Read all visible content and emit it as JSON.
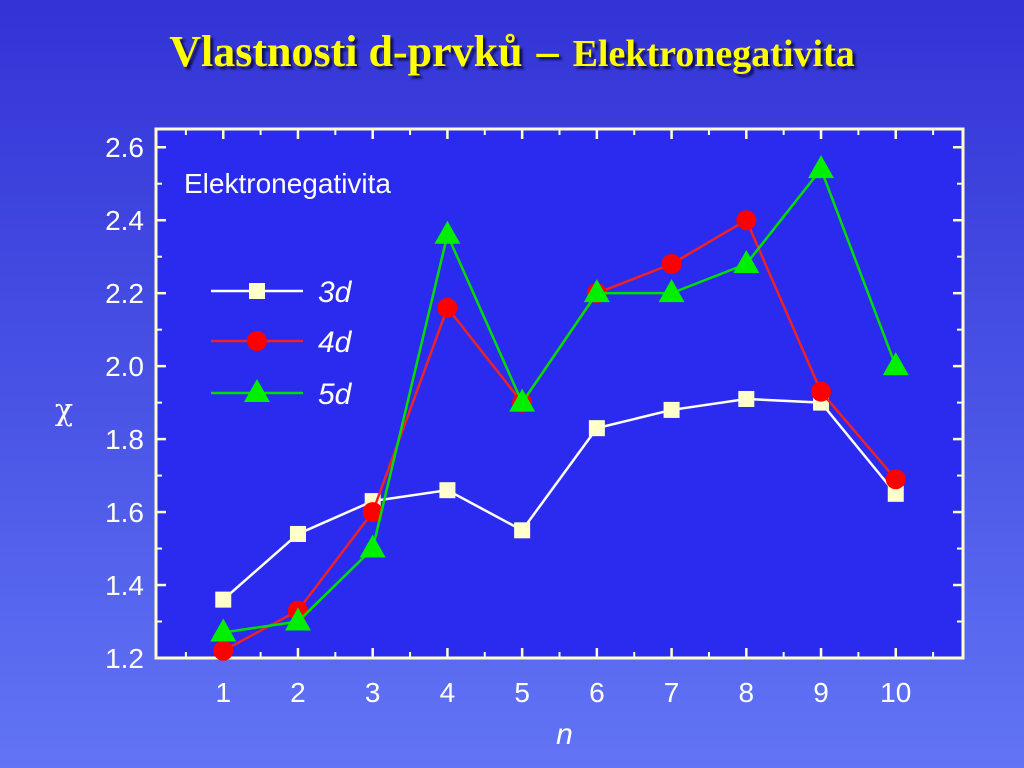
{
  "slide": {
    "title_main": "Vlastnosti d-prvků",
    "title_dash": "–",
    "title_sub": "Elektronegativita"
  },
  "chart_data": {
    "type": "line",
    "title": "Elektronegativita",
    "xlabel": "n",
    "ylabel": "χ",
    "x": [
      1,
      2,
      3,
      4,
      5,
      6,
      7,
      8,
      9,
      10
    ],
    "xlim": [
      0.1,
      10.9
    ],
    "ylim": [
      1.2,
      2.65
    ],
    "yticks": [
      "1.2",
      "1.4",
      "1.6",
      "1.8",
      "2.0",
      "2.2",
      "2.4",
      "2.6"
    ],
    "xticks": [
      "1",
      "2",
      "3",
      "4",
      "5",
      "6",
      "7",
      "8",
      "9",
      "10"
    ],
    "legend_position": "upper-left",
    "grid": false,
    "series": [
      {
        "name": "3d",
        "marker": "square",
        "color": "#ffffff",
        "marker_color": "#ffffcc",
        "values": [
          1.36,
          1.54,
          1.63,
          1.66,
          1.55,
          1.83,
          1.88,
          1.91,
          1.9,
          1.65
        ]
      },
      {
        "name": "4d",
        "marker": "circle",
        "color": "#ee2222",
        "marker_color": "#ff0000",
        "values": [
          1.22,
          1.33,
          1.6,
          2.16,
          1.9,
          2.2,
          2.28,
          2.4,
          1.93,
          1.69
        ]
      },
      {
        "name": "5d",
        "marker": "triangle",
        "color": "#00dd00",
        "marker_color": "#00ee00",
        "values": [
          1.27,
          1.3,
          1.5,
          2.36,
          1.9,
          2.2,
          2.2,
          2.28,
          2.54,
          2.0
        ]
      }
    ],
    "colors": {
      "plot_bg": "#2b2bf0",
      "axis": "#ffffcc",
      "text": "#ffffff"
    }
  }
}
